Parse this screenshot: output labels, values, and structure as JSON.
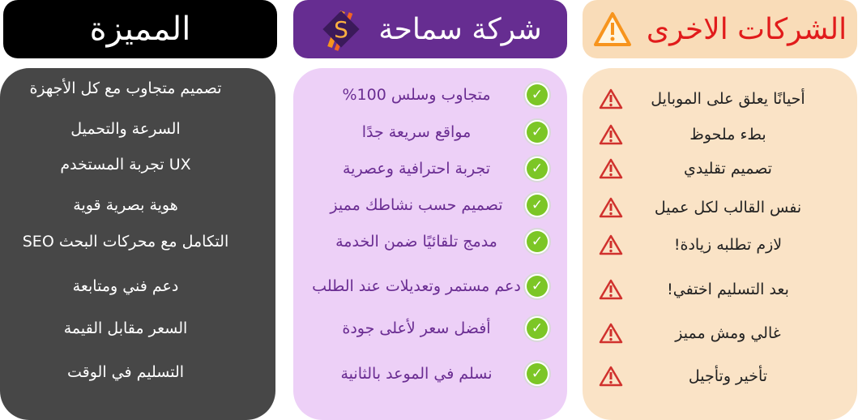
{
  "colors": {
    "features_header": "#000000",
    "features_panel": "#474747",
    "company_header": "#662d91",
    "company_panel": "#edd0f7",
    "others_header": "#f9dcb8",
    "others_panel": "#fae3c6",
    "warning": "#d0312d",
    "check": "#7cc626"
  },
  "features": {
    "title": "المميزة",
    "items": [
      "تصميم متجاوب مع كل الأجهزة",
      "السرعة والتحميل",
      "UX تجربة المستخدم",
      "هوية بصرية قوية",
      "التكامل مع محركات البحث SEO",
      "دعم فني ومتابعة",
      "السعر مقابل القيمة",
      "التسليم في الوقت"
    ]
  },
  "company": {
    "title": "شركة سماحة",
    "logo_letter": "S",
    "icon": "check-icon",
    "items": [
      "متجاوب وسلس 100%",
      "مواقع سريعة جدًا",
      "تجربة احترافية وعصرية",
      "تصميم حسب نشاطك مميز",
      "مدمج تلقائيًا ضمن الخدمة",
      "دعم مستمر وتعديلات عند الطلب",
      "أفضل سعر لأعلى جودة",
      "نسلم في الموعد بالثانية"
    ]
  },
  "others": {
    "title": "الشركات الاخرى",
    "icon": "warning-icon",
    "items": [
      "أحيانًا يعلق على الموبايل",
      "بطء ملحوظ",
      "تصميم تقليدي",
      "نفس القالب لكل عميل",
      "لازم تطلبه زيادة!",
      "بعد التسليم اختفي!",
      "غالي ومش مميز",
      "تأخير وتأجيل"
    ]
  }
}
